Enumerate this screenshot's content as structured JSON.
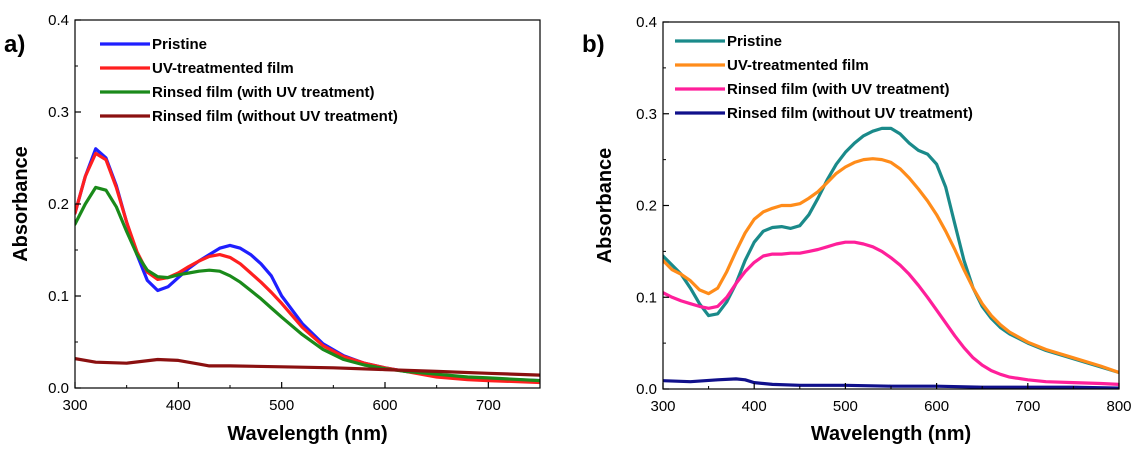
{
  "chart_data": [
    {
      "type": "line",
      "panel_label": "a)",
      "xlabel": "Wavelength (nm)",
      "ylabel": "Absorbance",
      "xlim": [
        300,
        750
      ],
      "ylim": [
        0,
        0.4
      ],
      "xticks": [
        300,
        400,
        500,
        600,
        700
      ],
      "xtick_labels": [
        "300",
        "400",
        "500",
        "600",
        "700"
      ],
      "yticks": [
        0,
        0.1,
        0.2,
        0.3,
        0.4
      ],
      "ytick_labels": [
        "0.0",
        "0.1",
        "0.2",
        "0.3",
        "0.4"
      ],
      "grid": false,
      "legend_position": "top-left",
      "series": [
        {
          "name": "Pristine",
          "color": "#1f1fff",
          "x": [
            300,
            310,
            320,
            330,
            340,
            350,
            360,
            370,
            380,
            390,
            400,
            410,
            420,
            430,
            440,
            450,
            460,
            470,
            480,
            490,
            500,
            520,
            540,
            560,
            580,
            600,
            620,
            650,
            680,
            700,
            750
          ],
          "y": [
            0.19,
            0.23,
            0.26,
            0.25,
            0.22,
            0.18,
            0.145,
            0.117,
            0.106,
            0.11,
            0.12,
            0.13,
            0.138,
            0.145,
            0.152,
            0.155,
            0.152,
            0.145,
            0.135,
            0.122,
            0.1,
            0.07,
            0.048,
            0.035,
            0.027,
            0.022,
            0.018,
            0.014,
            0.011,
            0.01,
            0.008
          ]
        },
        {
          "name": "UV-treatmented film",
          "color": "#ff1f1f",
          "x": [
            300,
            310,
            320,
            330,
            340,
            350,
            360,
            370,
            380,
            390,
            400,
            410,
            420,
            430,
            440,
            450,
            460,
            470,
            480,
            490,
            500,
            520,
            540,
            560,
            580,
            600,
            620,
            650,
            680,
            700,
            750
          ],
          "y": [
            0.19,
            0.23,
            0.255,
            0.248,
            0.218,
            0.18,
            0.148,
            0.126,
            0.118,
            0.12,
            0.125,
            0.132,
            0.138,
            0.143,
            0.145,
            0.142,
            0.135,
            0.125,
            0.115,
            0.104,
            0.092,
            0.066,
            0.046,
            0.034,
            0.027,
            0.022,
            0.018,
            0.012,
            0.009,
            0.008,
            0.006
          ]
        },
        {
          "name": "Rinsed film (with UV treatment)",
          "color": "#1a8a1a",
          "x": [
            300,
            310,
            320,
            330,
            340,
            350,
            360,
            370,
            380,
            390,
            400,
            410,
            420,
            430,
            440,
            450,
            460,
            470,
            480,
            490,
            500,
            520,
            540,
            560,
            580,
            600,
            620,
            650,
            680,
            700,
            750
          ],
          "y": [
            0.178,
            0.2,
            0.218,
            0.215,
            0.197,
            0.17,
            0.145,
            0.128,
            0.121,
            0.12,
            0.123,
            0.125,
            0.127,
            0.128,
            0.127,
            0.122,
            0.115,
            0.106,
            0.097,
            0.087,
            0.077,
            0.058,
            0.042,
            0.031,
            0.025,
            0.021,
            0.018,
            0.015,
            0.012,
            0.011,
            0.008
          ]
        },
        {
          "name": "Rinsed film (without UV treatment)",
          "color": "#8b1010",
          "x": [
            300,
            320,
            350,
            380,
            400,
            420,
            430,
            450,
            500,
            550,
            600,
            650,
            700,
            750
          ],
          "y": [
            0.032,
            0.028,
            0.027,
            0.031,
            0.03,
            0.026,
            0.024,
            0.024,
            0.023,
            0.022,
            0.02,
            0.018,
            0.016,
            0.014
          ]
        }
      ]
    },
    {
      "type": "line",
      "panel_label": "b)",
      "xlabel": "Wavelength (nm)",
      "ylabel": "Absorbance",
      "xlim": [
        300,
        800
      ],
      "ylim": [
        0,
        0.4
      ],
      "xticks": [
        300,
        400,
        500,
        600,
        700,
        800
      ],
      "xtick_labels": [
        "300",
        "400",
        "500",
        "600",
        "700",
        "800"
      ],
      "yticks": [
        0,
        0.1,
        0.2,
        0.3,
        0.4
      ],
      "ytick_labels": [
        "0.0",
        "0.1",
        "0.2",
        "0.3",
        "0.4"
      ],
      "grid": false,
      "legend_position": "top-left",
      "series": [
        {
          "name": "Pristine",
          "color": "#1a8a8a",
          "x": [
            300,
            310,
            320,
            330,
            340,
            350,
            360,
            370,
            380,
            390,
            400,
            410,
            420,
            430,
            440,
            450,
            460,
            470,
            480,
            490,
            500,
            510,
            520,
            530,
            540,
            550,
            560,
            570,
            580,
            590,
            600,
            610,
            620,
            630,
            640,
            650,
            660,
            670,
            680,
            700,
            720,
            750,
            780,
            800
          ],
          "y": [
            0.145,
            0.135,
            0.125,
            0.11,
            0.093,
            0.08,
            0.082,
            0.095,
            0.115,
            0.14,
            0.16,
            0.172,
            0.176,
            0.177,
            0.175,
            0.178,
            0.19,
            0.208,
            0.228,
            0.245,
            0.258,
            0.268,
            0.276,
            0.281,
            0.284,
            0.284,
            0.278,
            0.268,
            0.26,
            0.256,
            0.245,
            0.22,
            0.18,
            0.14,
            0.11,
            0.09,
            0.077,
            0.067,
            0.06,
            0.05,
            0.042,
            0.033,
            0.024,
            0.018
          ]
        },
        {
          "name": "UV-treatmented film",
          "color": "#ff8c1a",
          "x": [
            300,
            310,
            320,
            330,
            340,
            350,
            360,
            370,
            380,
            390,
            400,
            410,
            420,
            430,
            440,
            450,
            460,
            470,
            480,
            490,
            500,
            510,
            520,
            530,
            540,
            550,
            560,
            570,
            580,
            590,
            600,
            610,
            620,
            630,
            640,
            650,
            660,
            670,
            680,
            700,
            720,
            750,
            780,
            800
          ],
          "y": [
            0.14,
            0.13,
            0.125,
            0.118,
            0.108,
            0.104,
            0.11,
            0.128,
            0.15,
            0.17,
            0.185,
            0.193,
            0.197,
            0.2,
            0.2,
            0.202,
            0.208,
            0.215,
            0.225,
            0.235,
            0.242,
            0.247,
            0.25,
            0.251,
            0.25,
            0.247,
            0.24,
            0.23,
            0.218,
            0.205,
            0.19,
            0.172,
            0.152,
            0.13,
            0.11,
            0.093,
            0.08,
            0.07,
            0.062,
            0.051,
            0.043,
            0.034,
            0.025,
            0.018
          ]
        },
        {
          "name": "Rinsed film (with UV treatment)",
          "color": "#ff1f9a",
          "x": [
            300,
            310,
            320,
            330,
            340,
            350,
            360,
            370,
            380,
            390,
            400,
            410,
            420,
            430,
            440,
            450,
            460,
            470,
            480,
            490,
            500,
            510,
            520,
            530,
            540,
            550,
            560,
            570,
            580,
            590,
            600,
            610,
            620,
            630,
            640,
            650,
            660,
            670,
            680,
            700,
            720,
            750,
            780,
            800
          ],
          "y": [
            0.105,
            0.1,
            0.096,
            0.093,
            0.09,
            0.088,
            0.09,
            0.1,
            0.115,
            0.128,
            0.138,
            0.145,
            0.147,
            0.147,
            0.148,
            0.148,
            0.15,
            0.152,
            0.155,
            0.158,
            0.16,
            0.16,
            0.158,
            0.155,
            0.15,
            0.143,
            0.135,
            0.125,
            0.113,
            0.1,
            0.086,
            0.072,
            0.058,
            0.045,
            0.034,
            0.026,
            0.02,
            0.016,
            0.013,
            0.01,
            0.008,
            0.007,
            0.006,
            0.005
          ]
        },
        {
          "name": "Rinsed film (without UV treatment)",
          "color": "#10108b",
          "x": [
            300,
            330,
            360,
            380,
            390,
            400,
            420,
            450,
            500,
            550,
            600,
            650,
            700,
            750,
            800
          ],
          "y": [
            0.009,
            0.008,
            0.01,
            0.011,
            0.01,
            0.007,
            0.005,
            0.004,
            0.004,
            0.003,
            0.003,
            0.002,
            0.002,
            0.002,
            0.001
          ]
        }
      ]
    }
  ]
}
